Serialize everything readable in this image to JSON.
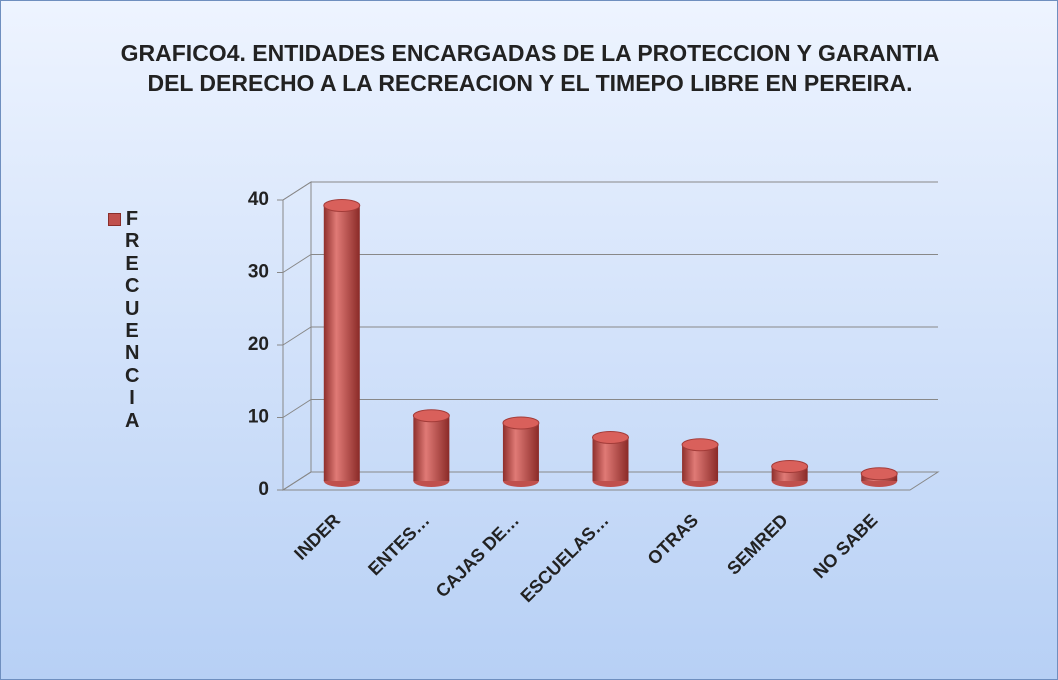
{
  "chart_data": {
    "type": "bar",
    "title": "GRAFICO4. ENTIDADES ENCARGADAS DE LA PROTECCION Y GARANTIA  DEL DERECHO A LA RECREACION Y EL TIMEPO LIBRE EN PEREIRA.",
    "categories": [
      "INDER",
      "ENTES…",
      "CAJAS DE…",
      "ESCUELAS…",
      "OTRAS",
      "SEMRED",
      "NO SABE"
    ],
    "series": [
      {
        "name": "FRECUENCIA",
        "color": "#c0504d",
        "values": [
          38,
          9,
          8,
          6,
          5,
          2,
          1
        ]
      }
    ],
    "ylim": [
      0,
      40
    ],
    "yticks": [
      0,
      10,
      20,
      30,
      40
    ],
    "grid": true,
    "legend": "left"
  }
}
